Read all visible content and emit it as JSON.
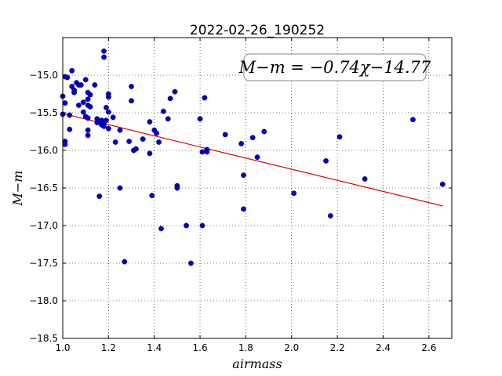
{
  "chart_data": {
    "type": "scatter",
    "title": "2022-02-26_190252",
    "xlabel": "airmass",
    "ylabel": "M−m",
    "xlim": [
      1.0,
      2.7
    ],
    "ylim": [
      -18.5,
      -14.5
    ],
    "xticks": [
      1.0,
      1.2,
      1.4,
      1.6,
      1.8,
      2.0,
      2.2,
      2.4,
      2.6
    ],
    "xtick_labels": [
      "1.0",
      "1.2",
      "1.4",
      "1.6",
      "1.8",
      "2.0",
      "2.2",
      "2.4",
      "2.6"
    ],
    "yticks": [
      -15.0,
      -15.5,
      -16.0,
      -16.5,
      -17.0,
      -17.5,
      -18.0,
      -18.5
    ],
    "ytick_labels": [
      "−15.0",
      "−15.5",
      "−16.0",
      "−16.5",
      "−17.0",
      "−17.5",
      "−18.0",
      "−18.5"
    ],
    "grid": true,
    "marker_color": "#0000cc",
    "fit_color": "#dd0000",
    "annotation": "M−m = −0.74χ−14.77",
    "annotation_location": "top-right",
    "fit": {
      "slope": -0.74,
      "intercept": -14.77,
      "x_range": [
        1.0,
        2.66
      ]
    },
    "points": [
      [
        1.0,
        -15.28
      ],
      [
        1.0,
        -15.52
      ],
      [
        1.01,
        -15.02
      ],
      [
        1.01,
        -15.37
      ],
      [
        1.01,
        -15.88
      ],
      [
        1.01,
        -15.92
      ],
      [
        1.02,
        -15.03
      ],
      [
        1.03,
        -15.53
      ],
      [
        1.03,
        -15.72
      ],
      [
        1.04,
        -15.15
      ],
      [
        1.04,
        -14.94
      ],
      [
        1.05,
        -15.23
      ],
      [
        1.05,
        -15.2
      ],
      [
        1.06,
        -15.1
      ],
      [
        1.07,
        -15.4
      ],
      [
        1.07,
        -15.13
      ],
      [
        1.08,
        -15.13
      ],
      [
        1.09,
        -15.49
      ],
      [
        1.09,
        -15.36
      ],
      [
        1.1,
        -15.55
      ],
      [
        1.1,
        -15.06
      ],
      [
        1.11,
        -15.57
      ],
      [
        1.11,
        -15.32
      ],
      [
        1.11,
        -15.23
      ],
      [
        1.11,
        -15.4
      ],
      [
        1.11,
        -15.73
      ],
      [
        1.11,
        -15.8
      ],
      [
        1.12,
        -15.26
      ],
      [
        1.12,
        -15.42
      ],
      [
        1.14,
        -15.13
      ],
      [
        1.15,
        -15.58
      ],
      [
        1.15,
        -15.63
      ],
      [
        1.16,
        -16.61
      ],
      [
        1.16,
        -15.62
      ],
      [
        1.17,
        -15.6
      ],
      [
        1.17,
        -15.66
      ],
      [
        1.18,
        -15.68
      ],
      [
        1.18,
        -15.64
      ],
      [
        1.18,
        -14.68
      ],
      [
        1.18,
        -14.76
      ],
      [
        1.19,
        -15.6
      ],
      [
        1.19,
        -15.43
      ],
      [
        1.2,
        -15.49
      ],
      [
        1.2,
        -15.71
      ],
      [
        1.2,
        -15.29
      ],
      [
        1.2,
        -15.25
      ],
      [
        1.22,
        -15.56
      ],
      [
        1.23,
        -15.89
      ],
      [
        1.25,
        -16.5
      ],
      [
        1.25,
        -15.73
      ],
      [
        1.27,
        -17.48
      ],
      [
        1.29,
        -15.88
      ],
      [
        1.3,
        -15.15
      ],
      [
        1.3,
        -15.34
      ],
      [
        1.31,
        -16.0
      ],
      [
        1.32,
        -15.98
      ],
      [
        1.35,
        -15.85
      ],
      [
        1.38,
        -15.62
      ],
      [
        1.38,
        -16.04
      ],
      [
        1.39,
        -16.6
      ],
      [
        1.4,
        -15.73
      ],
      [
        1.41,
        -15.77
      ],
      [
        1.42,
        -15.89
      ],
      [
        1.43,
        -17.04
      ],
      [
        1.44,
        -15.48
      ],
      [
        1.46,
        -15.58
      ],
      [
        1.47,
        -15.31
      ],
      [
        1.49,
        -15.22
      ],
      [
        1.5,
        -16.47
      ],
      [
        1.5,
        -16.5
      ],
      [
        1.54,
        -17.0
      ],
      [
        1.56,
        -17.5
      ],
      [
        1.6,
        -15.58
      ],
      [
        1.61,
        -17.0
      ],
      [
        1.61,
        -16.02
      ],
      [
        1.62,
        -15.3
      ],
      [
        1.63,
        -15.99
      ],
      [
        1.63,
        -16.02
      ],
      [
        1.71,
        -15.79
      ],
      [
        1.78,
        -15.91
      ],
      [
        1.79,
        -16.78
      ],
      [
        1.79,
        -16.33
      ],
      [
        1.83,
        -15.83
      ],
      [
        1.85,
        -16.09
      ],
      [
        1.88,
        -15.75
      ],
      [
        2.01,
        -16.57
      ],
      [
        2.15,
        -16.14
      ],
      [
        2.17,
        -16.87
      ],
      [
        2.21,
        -15.82
      ],
      [
        2.32,
        -16.38
      ],
      [
        2.53,
        -15.59
      ],
      [
        2.66,
        -16.45
      ]
    ]
  }
}
